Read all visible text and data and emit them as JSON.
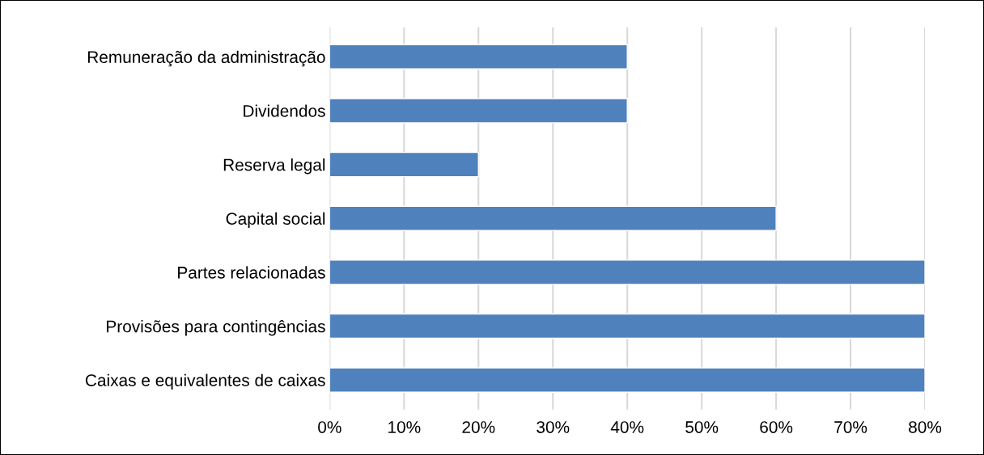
{
  "chart_data": {
    "type": "bar",
    "orientation": "horizontal",
    "categories": [
      "Remuneração da administração",
      "Dividendos",
      "Reserva legal",
      "Capital social",
      "Partes relacionadas",
      "Provisões para contingências",
      "Caixas e equivalentes de caixas"
    ],
    "values": [
      40,
      40,
      20,
      60,
      80,
      80,
      80
    ],
    "color": "#4f81bd",
    "xlim": [
      0,
      80
    ],
    "xticks": [
      {
        "value": 0,
        "label": "0%"
      },
      {
        "value": 10,
        "label": "10%"
      },
      {
        "value": 20,
        "label": "20%"
      },
      {
        "value": 30,
        "label": "30%"
      },
      {
        "value": 40,
        "label": "40%"
      },
      {
        "value": 50,
        "label": "50%"
      },
      {
        "value": 60,
        "label": "60%"
      },
      {
        "value": 70,
        "label": "70%"
      },
      {
        "value": 80,
        "label": "80%"
      }
    ],
    "grid": "x",
    "legend": false
  }
}
